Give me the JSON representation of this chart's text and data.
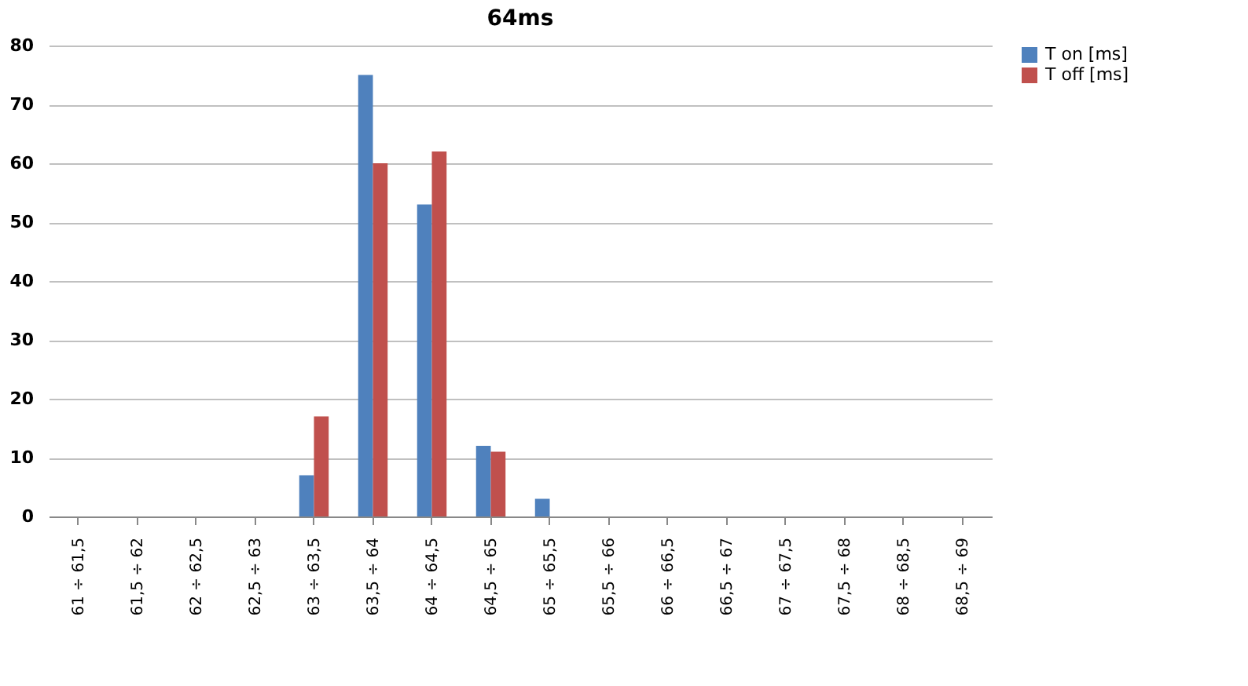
{
  "chart_data": {
    "type": "bar",
    "title": "64ms",
    "categories": [
      "61 ÷ 61,5",
      "61,5 ÷ 62",
      "62 ÷ 62,5",
      "62,5 ÷ 63",
      "63 ÷ 63,5",
      "63,5 ÷ 64",
      "64 ÷ 64,5",
      "64,5 ÷ 65",
      "65 ÷ 65,5",
      "65,5 ÷ 66",
      "66 ÷ 66,5",
      "66,5 ÷ 67",
      "67 ÷ 67,5",
      "67,5 ÷ 68",
      "68 ÷ 68,5",
      "68,5 ÷ 69"
    ],
    "series": [
      {
        "name": "T on [ms]",
        "color": "#4f81bd",
        "values": [
          0,
          0,
          0,
          0,
          7,
          75,
          53,
          12,
          3,
          0,
          0,
          0,
          0,
          0,
          0,
          0
        ]
      },
      {
        "name": "T off [ms]",
        "color": "#c0504d",
        "values": [
          0,
          0,
          0,
          0,
          17,
          60,
          62,
          11,
          0,
          0,
          0,
          0,
          0,
          0,
          0,
          0
        ]
      }
    ],
    "ylim": [
      0,
      80
    ],
    "yticks": [
      0,
      10,
      20,
      30,
      40,
      50,
      60,
      70,
      80
    ],
    "grid": "y",
    "legend": "right"
  }
}
